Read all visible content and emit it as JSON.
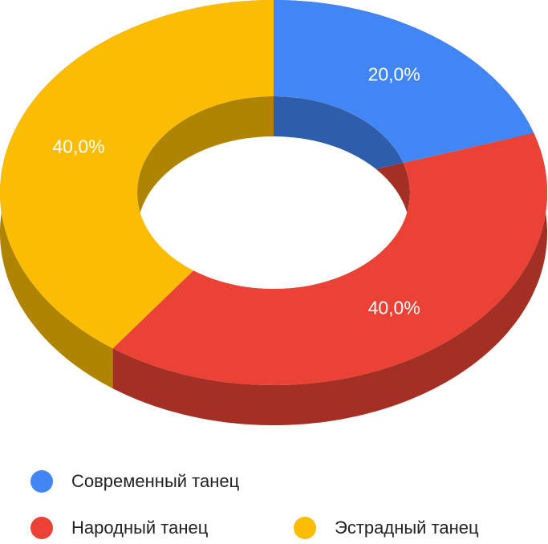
{
  "chart_data": {
    "type": "donut3d",
    "categories": [
      "Современный танец",
      "Народный танец",
      "Эстрадный танец"
    ],
    "values": [
      20,
      40,
      40
    ],
    "value_labels": [
      "20,0%",
      "40,0%",
      "40,0%"
    ],
    "colors": [
      "#4285f4",
      "#ea4335",
      "#fbbc04"
    ]
  }
}
